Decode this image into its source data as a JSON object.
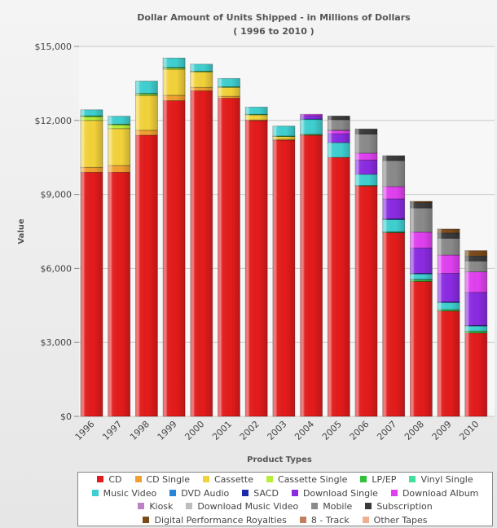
{
  "chart_data": {
    "type": "bar",
    "stacked": true,
    "title": "Dollar Amount of Units Shipped - in Millions of Dollars",
    "subtitle": "( 1996 to 2010 )",
    "xlabel": "Product Types",
    "ylabel": "Value",
    "ylim": [
      0,
      15000
    ],
    "yticks": [
      0,
      3000,
      6000,
      9000,
      12000,
      15000
    ],
    "ytick_labels": [
      "$0",
      "$3,000",
      "$6,000",
      "$9,000",
      "$12,000",
      "$15,000"
    ],
    "grid": true,
    "legend_position": "bottom",
    "categories": [
      "1996",
      "1997",
      "1998",
      "1999",
      "2000",
      "2001",
      "2002",
      "2003",
      "2004",
      "2005",
      "2006",
      "2007",
      "2008",
      "2009",
      "2010"
    ],
    "series": [
      {
        "name": "CD",
        "color": "#e31b1b",
        "values": [
          9900,
          9900,
          11400,
          12800,
          13200,
          12900,
          12000,
          11200,
          11400,
          10500,
          9350,
          7450,
          5470,
          4270,
          3380
        ]
      },
      {
        "name": "CD Single",
        "color": "#f0a030",
        "values": [
          200,
          270,
          200,
          220,
          140,
          80,
          20,
          40,
          0,
          0,
          0,
          0,
          0,
          0,
          0
        ]
      },
      {
        "name": "Cassette",
        "color": "#f2d23a",
        "values": [
          1900,
          1500,
          1400,
          1050,
          630,
          360,
          210,
          110,
          20,
          0,
          0,
          0,
          0,
          0,
          0
        ]
      },
      {
        "name": "Cassette Single",
        "color": "#b8ee3a",
        "values": [
          150,
          150,
          60,
          50,
          0,
          0,
          0,
          0,
          0,
          0,
          0,
          0,
          0,
          0,
          0
        ]
      },
      {
        "name": "LP/EP",
        "color": "#2ec23a",
        "values": [
          40,
          30,
          35,
          30,
          30,
          30,
          20,
          20,
          20,
          0,
          15,
          20,
          60,
          60,
          80
        ]
      },
      {
        "name": "Vinyl Single",
        "color": "#3fe0a0",
        "values": [
          0,
          0,
          0,
          0,
          0,
          0,
          0,
          0,
          0,
          0,
          0,
          20,
          30,
          0,
          0
        ]
      },
      {
        "name": "Music Video",
        "color": "#3fcfd0",
        "values": [
          240,
          320,
          500,
          380,
          280,
          330,
          290,
          400,
          610,
          600,
          450,
          490,
          220,
          290,
          210
        ]
      },
      {
        "name": "DVD Audio",
        "color": "#2a86d8",
        "values": [
          0,
          0,
          0,
          0,
          0,
          0,
          0,
          0,
          10,
          0,
          0,
          0,
          0,
          0,
          0
        ]
      },
      {
        "name": "SACD",
        "color": "#1a2aa8",
        "values": [
          0,
          0,
          0,
          0,
          0,
          0,
          0,
          0,
          0,
          0,
          0,
          30,
          20,
          20,
          20
        ]
      },
      {
        "name": "Download Single",
        "color": "#8a2be2",
        "values": [
          0,
          0,
          0,
          0,
          0,
          0,
          0,
          0,
          140,
          360,
          580,
          810,
          1030,
          1160,
          1340
        ]
      },
      {
        "name": "Download Album",
        "color": "#e040f0",
        "values": [
          0,
          0,
          0,
          0,
          0,
          0,
          0,
          0,
          50,
          140,
          280,
          500,
          640,
          740,
          830
        ]
      },
      {
        "name": "Kiosk",
        "color": "#c080c8",
        "values": [
          0,
          0,
          0,
          0,
          0,
          0,
          0,
          0,
          0,
          10,
          0,
          0,
          0,
          0,
          0
        ]
      },
      {
        "name": "Download Music Video",
        "color": "#bdbdbd",
        "values": [
          0,
          0,
          0,
          0,
          0,
          0,
          0,
          0,
          0,
          0,
          0,
          0,
          0,
          0,
          0
        ]
      },
      {
        "name": "Mobile",
        "color": "#8a8a8a",
        "values": [
          0,
          0,
          0,
          0,
          0,
          0,
          0,
          0,
          0,
          420,
          770,
          1050,
          980,
          680,
          440
        ]
      },
      {
        "name": "Subscription",
        "color": "#3a3a3a",
        "values": [
          0,
          0,
          0,
          0,
          0,
          0,
          0,
          0,
          0,
          150,
          210,
          200,
          220,
          220,
          200
        ]
      },
      {
        "name": "Digital Performance Royalties",
        "color": "#7a4a1a",
        "values": [
          0,
          0,
          0,
          0,
          0,
          0,
          0,
          0,
          0,
          0,
          0,
          0,
          50,
          160,
          220
        ]
      },
      {
        "name": "8 - Track",
        "color": "#c08060",
        "values": [
          0,
          0,
          0,
          0,
          0,
          0,
          0,
          0,
          0,
          0,
          0,
          0,
          0,
          0,
          0
        ]
      },
      {
        "name": "Other Tapes",
        "color": "#f0b090",
        "values": [
          0,
          0,
          0,
          0,
          0,
          0,
          0,
          0,
          0,
          0,
          0,
          0,
          0,
          0,
          0
        ]
      }
    ]
  }
}
